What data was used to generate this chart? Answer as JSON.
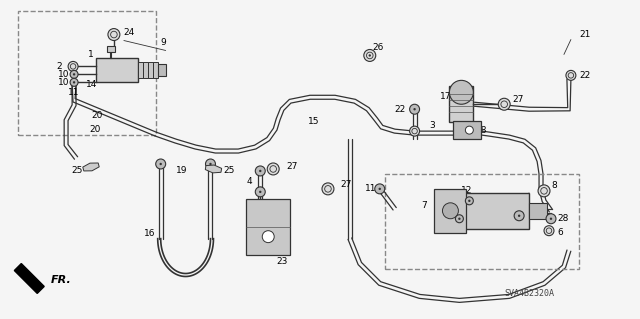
{
  "bg_color": "#f5f5f5",
  "line_color": "#333333",
  "text_color": "#000000",
  "title": "SVA4B2320A",
  "fr_label": "FR.",
  "fig_width": 6.4,
  "fig_height": 3.19,
  "dpi": 100
}
